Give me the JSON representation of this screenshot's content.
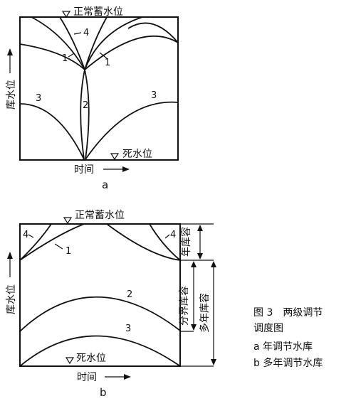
{
  "diagram_a": {
    "normal_level": "正常蓄水位",
    "dead_level": "死水位",
    "y_axis": "库水位",
    "x_axis": "时间",
    "caption": "a",
    "curve_labels": {
      "c1_left": "1",
      "c1_right": "1",
      "c2": "2",
      "c3_left": "3",
      "c3_right": "3",
      "c4": "4"
    }
  },
  "diagram_b": {
    "normal_level": "正常蓄水位",
    "dead_level": "死水位",
    "y_axis": "库水位",
    "x_axis": "时间",
    "caption": "b",
    "curve_labels": {
      "c1": "1",
      "c2": "2",
      "c3": "3",
      "c4_left": "4",
      "c4_right": "4"
    },
    "annual_storage": "年库容",
    "boundary_storage": "分界库容",
    "multiyear_storage": "多年库容"
  },
  "legend": {
    "title_line1": "图 3　两级调节",
    "title_line2": "调度图",
    "item_a": "a  年调节水库",
    "item_b": "b  多年调节水库"
  }
}
